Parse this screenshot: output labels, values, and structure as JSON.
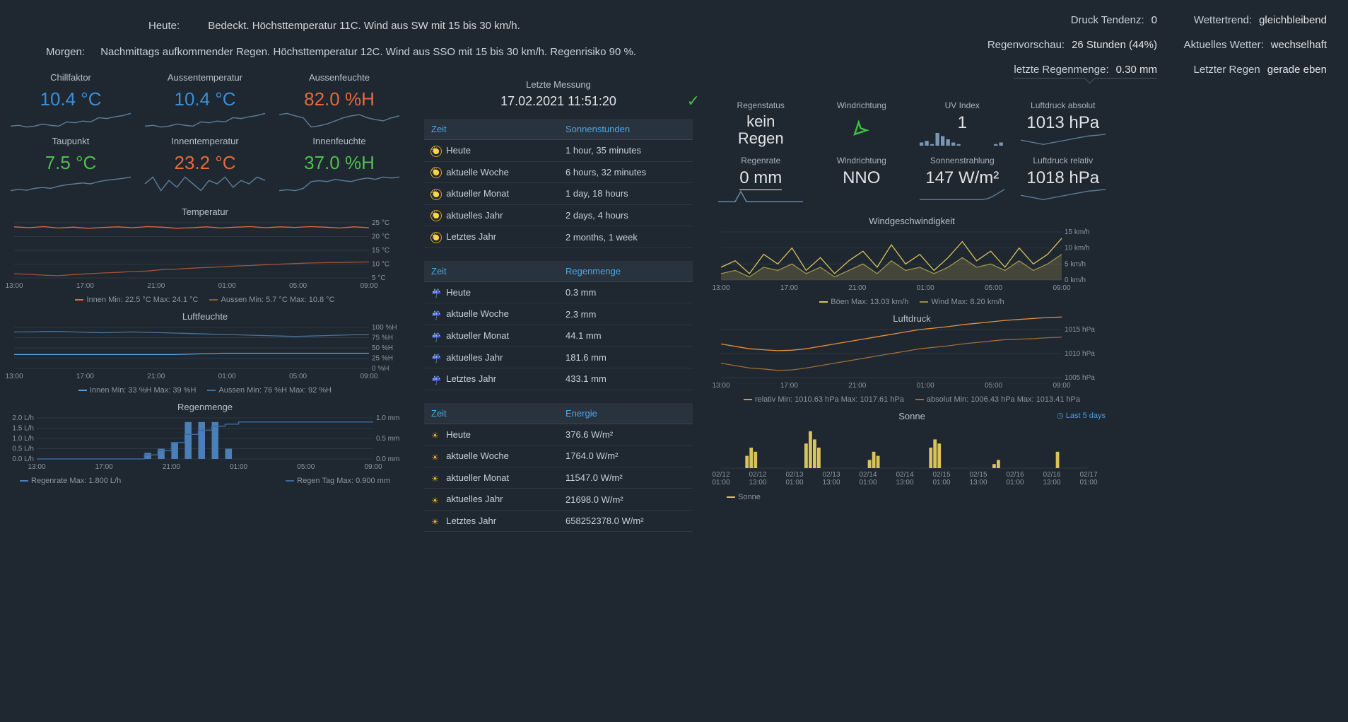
{
  "forecast_today": {
    "label": "Heute:",
    "text": "Bedeckt. Höchsttemperatur 11C. Wind aus SW mit 15 bis 30 km/h."
  },
  "forecast_tomorrow": {
    "label": "Morgen:",
    "text": "Nachmittags aufkommender Regen. Höchsttemperatur 12C. Wind aus SSO mit 15 bis 30 km/h. Regenrisiko 90 %."
  },
  "top_right": {
    "pressure_trend": {
      "label": "Druck Tendenz:",
      "value": "0"
    },
    "weather_trend": {
      "label": "Wettertrend:",
      "value": "gleichbleibend"
    },
    "rain_forecast": {
      "label": "Regenvorschau:",
      "value": "26 Stunden (44%)"
    },
    "current_weather": {
      "label": "Aktuelles Wetter:",
      "value": "wechselhaft"
    },
    "last_rain_amount": {
      "label": "letzte Regenmenge:",
      "value": "0.30 mm"
    },
    "last_rain": {
      "label": "Letzter Regen",
      "value": "gerade eben"
    }
  },
  "timestamp": {
    "label": "Letzte Messung",
    "value": "17.02.2021 11:51:20"
  },
  "left_metrics": [
    {
      "title": "Chillfaktor",
      "value": "10.4 °C",
      "color": "#3a8fd9",
      "spark_color": "#5a7a94",
      "spark": [
        0.4,
        0.42,
        0.38,
        0.4,
        0.45,
        0.42,
        0.4,
        0.5,
        0.48,
        0.52,
        0.5,
        0.6,
        0.58,
        0.62,
        0.65,
        0.7
      ]
    },
    {
      "title": "Aussentemperatur",
      "value": "10.4 °C",
      "color": "#3a8fd9",
      "spark_color": "#5a7a94",
      "spark": [
        0.4,
        0.42,
        0.38,
        0.4,
        0.45,
        0.42,
        0.4,
        0.5,
        0.48,
        0.52,
        0.5,
        0.6,
        0.58,
        0.62,
        0.65,
        0.7
      ]
    },
    {
      "title": "Aussenfeuchte",
      "value": "82.0 %H",
      "color": "#e66a3c",
      "spark_color": "#5a7a94",
      "spark": [
        0.6,
        0.62,
        0.58,
        0.55,
        0.4,
        0.42,
        0.45,
        0.5,
        0.55,
        0.58,
        0.6,
        0.55,
        0.52,
        0.5,
        0.55,
        0.58
      ]
    },
    {
      "title": "Taupunkt",
      "value": "7.5 °C",
      "color": "#4fbf4f",
      "spark_color": "#5a7a94",
      "spark": [
        0.35,
        0.38,
        0.36,
        0.4,
        0.42,
        0.4,
        0.45,
        0.48,
        0.5,
        0.52,
        0.5,
        0.55,
        0.58,
        0.6,
        0.62,
        0.65
      ]
    },
    {
      "title": "Innentemperatur",
      "value": "23.2 °C",
      "color": "#e66a3c",
      "spark_color": "#5a7a94",
      "spark": [
        0.5,
        0.6,
        0.4,
        0.55,
        0.45,
        0.6,
        0.5,
        0.4,
        0.55,
        0.5,
        0.6,
        0.45,
        0.55,
        0.5,
        0.6,
        0.55
      ]
    },
    {
      "title": "Innenfeuchte",
      "value": "37.0 %H",
      "color": "#4fbf4f",
      "spark_color": "#5a7a94",
      "spark": [
        0.3,
        0.32,
        0.3,
        0.35,
        0.5,
        0.52,
        0.5,
        0.55,
        0.52,
        0.5,
        0.55,
        0.58,
        0.55,
        0.6,
        0.58,
        0.6
      ]
    }
  ],
  "right_metrics": [
    {
      "title": "Regenstatus",
      "value_html": "kein<br>Regen",
      "color": "#e0e4e8",
      "spark": null
    },
    {
      "title": "Windrichtung",
      "arrow": true,
      "arrow_rotation": 225,
      "color": "#3fbf3f"
    },
    {
      "title": "UV Index",
      "value": "1",
      "color": "#e0e4e8",
      "bar_spark": [
        0.1,
        0.15,
        0.05,
        0.4,
        0.3,
        0.2,
        0.1,
        0.05,
        0.0,
        0.0,
        0.0,
        0.0,
        0.0,
        0.0,
        0.05,
        0.1
      ]
    },
    {
      "title": "Luftdruck absolut",
      "value": "1013 hPa",
      "color": "#e0e4e8",
      "spark_color": "#5a7a94",
      "spark": [
        0.5,
        0.45,
        0.4,
        0.35,
        0.3,
        0.35,
        0.4,
        0.45,
        0.5,
        0.55,
        0.6,
        0.65,
        0.7,
        0.72,
        0.75,
        0.78
      ]
    },
    {
      "title": "Regenrate",
      "value": "0 mm",
      "underline": true,
      "color": "#e0e4e8",
      "spark_color": "#6a8aa8",
      "spark": [
        0,
        0,
        0,
        0,
        0.3,
        0,
        0,
        0,
        0,
        0,
        0,
        0,
        0,
        0,
        0,
        0
      ]
    },
    {
      "title": "Windrichtung",
      "value": "NNO",
      "color": "#e0e4e8",
      "spark": null
    },
    {
      "title": "Sonnenstrahlung",
      "value": "147 W/m²",
      "color": "#e0e4e8",
      "spark_color": "#5a7a94",
      "spark": [
        0.1,
        0.1,
        0.1,
        0.1,
        0.1,
        0.1,
        0.1,
        0.1,
        0.1,
        0.1,
        0.1,
        0.1,
        0.15,
        0.3,
        0.5,
        0.7
      ]
    },
    {
      "title": "Luftdruck relativ",
      "value": "1018 hPa",
      "color": "#e0e4e8",
      "spark_color": "#5a7a94",
      "spark": [
        0.5,
        0.45,
        0.4,
        0.35,
        0.3,
        0.35,
        0.4,
        0.45,
        0.5,
        0.55,
        0.6,
        0.65,
        0.7,
        0.72,
        0.75,
        0.78
      ]
    }
  ],
  "tables": {
    "sun": {
      "headers": [
        "Zeit",
        "Sonnenstunden"
      ],
      "icon": "sun",
      "rows": [
        [
          "Heute",
          "1 hour, 35 minutes"
        ],
        [
          "aktuelle Woche",
          "6 hours, 32 minutes"
        ],
        [
          "aktueller Monat",
          "1 day, 18 hours"
        ],
        [
          "aktuelles Jahr",
          "2 days, 4 hours"
        ],
        [
          "Letztes Jahr",
          "2 months, 1 week"
        ]
      ]
    },
    "rain": {
      "headers": [
        "Zeit",
        "Regenmenge"
      ],
      "icon": "rain",
      "rows": [
        [
          "Heute",
          "0.3 mm"
        ],
        [
          "aktuelle Woche",
          "2.3 mm"
        ],
        [
          "aktueller Monat",
          "44.1 mm"
        ],
        [
          "aktuelles Jahr",
          "181.6 mm"
        ],
        [
          "Letztes Jahr",
          "433.1 mm"
        ]
      ]
    },
    "energy": {
      "headers": [
        "Zeit",
        "Energie"
      ],
      "icon": "energy",
      "rows": [
        [
          "Heute",
          "376.6 W/m²"
        ],
        [
          "aktuelle Woche",
          "1764.0 W/m²"
        ],
        [
          "aktueller Monat",
          "11547.0 W/m²"
        ],
        [
          "aktuelles Jahr",
          "21698.0 W/m²"
        ],
        [
          "Letztes Jahr",
          "658252378.0 W/m²"
        ]
      ]
    }
  },
  "charts": {
    "time_axis_labels": [
      "13:00",
      "17:00",
      "21:00",
      "01:00",
      "05:00",
      "09:00"
    ],
    "temperature": {
      "title": "Temperatur",
      "height": 100,
      "y_ticks": [
        5,
        10,
        15,
        20,
        25
      ],
      "y_unit": "°C",
      "series": [
        {
          "name": "Innen",
          "color": "#e66a3c",
          "min": "22.5 °C",
          "max": "24.1 °C",
          "data": [
            23.5,
            23.2,
            23.6,
            23.1,
            23.4,
            23.0,
            23.3,
            23.5,
            23.2,
            23.6,
            23.4,
            23.0,
            23.2,
            23.5,
            23.1,
            23.4,
            23.6,
            23.2,
            23.5,
            23.3,
            23.6,
            23.4,
            23.1,
            23.5,
            23.2
          ]
        },
        {
          "name": "Aussen",
          "color": "#e66a3c",
          "dim": true,
          "min": "5.7 °C",
          "max": "10.8 °C",
          "data": [
            6.5,
            6.3,
            6.0,
            5.8,
            6.2,
            6.5,
            6.8,
            7.0,
            7.3,
            7.5,
            8.0,
            8.2,
            8.5,
            8.8,
            9.0,
            9.3,
            9.5,
            9.8,
            10.0,
            10.2,
            10.4,
            10.5,
            10.6,
            10.7,
            10.8
          ]
        }
      ]
    },
    "humidity": {
      "title": "Luftfeuchte",
      "height": 80,
      "y_ticks": [
        0,
        25,
        50,
        75,
        100
      ],
      "y_unit": "%H",
      "series": [
        {
          "name": "Innen",
          "color": "#5a9ed8",
          "min": "33 %H",
          "max": "39 %H",
          "data": [
            34,
            34,
            34,
            34,
            34,
            34,
            34,
            34,
            34,
            34,
            34,
            34,
            35,
            36,
            37,
            37,
            37,
            37,
            37,
            37,
            37,
            37,
            37,
            37,
            37
          ]
        },
        {
          "name": "Aussen",
          "color": "#5a9ed8",
          "dim": true,
          "min": "76 %H",
          "max": "92 %H",
          "data": [
            89,
            89,
            90,
            90,
            89,
            88,
            87,
            88,
            89,
            88,
            87,
            86,
            85,
            84,
            83,
            82,
            81,
            80,
            79,
            78,
            79,
            80,
            81,
            82,
            82
          ]
        }
      ]
    },
    "rain": {
      "title": "Regenmenge",
      "height": 80,
      "y_ticks_left": [
        0,
        0.5,
        1.0,
        1.5,
        2.0
      ],
      "y_unit_left": "L/h",
      "y_ticks_right": [
        0,
        0.5,
        1.0
      ],
      "y_unit_right": "mm",
      "bars": {
        "color_rate": "#4a7fb8",
        "color_day": "#3a6a9e",
        "rate_data": [
          0,
          0,
          0,
          0,
          0,
          0,
          0,
          0,
          0.3,
          0.5,
          0.8,
          1.8,
          1.8,
          1.8,
          0.5,
          0,
          0,
          0,
          0,
          0,
          0,
          0,
          0,
          0,
          0
        ],
        "day_data": [
          0,
          0,
          0,
          0,
          0,
          0,
          0,
          0,
          0.1,
          0.2,
          0.4,
          0.6,
          0.7,
          0.8,
          0.85,
          0.9,
          0.9,
          0.9,
          0.9,
          0.9,
          0.9,
          0.9,
          0.9,
          0.9,
          0.9
        ]
      },
      "legend": [
        {
          "name": "Regenrate",
          "color": "#4a7fb8",
          "sfx": "Max: 1.800 L/h"
        },
        {
          "name": "Regen Tag",
          "color": "#3a6a9e",
          "sfx": "Max: 0.900 mm"
        }
      ]
    },
    "windspeed": {
      "title": "Windgeschwindigkeit",
      "height": 90,
      "y_ticks": [
        0,
        5,
        10,
        15
      ],
      "y_unit": "km/h",
      "series": [
        {
          "name": "Böen",
          "color": "#d8c45a",
          "max": "13.03 km/h",
          "data": [
            4,
            6,
            2,
            8,
            5,
            10,
            3,
            7,
            2,
            6,
            9,
            4,
            11,
            5,
            8,
            3,
            7,
            12,
            6,
            9,
            4,
            10,
            5,
            8,
            13
          ]
        },
        {
          "name": "Wind",
          "color": "#d8c45a",
          "dim": true,
          "fill": true,
          "max": "8.20 km/h",
          "data": [
            2,
            3,
            1,
            4,
            3,
            5,
            2,
            4,
            1,
            3,
            5,
            2,
            6,
            3,
            4,
            2,
            4,
            7,
            4,
            5,
            3,
            6,
            3,
            5,
            8
          ]
        }
      ]
    },
    "pressure": {
      "title": "Luftdruck",
      "height": 90,
      "y_ticks": [
        1005,
        1010,
        1015
      ],
      "y_unit": "hPa",
      "series": [
        {
          "name": "relativ",
          "color": "#e6903c",
          "min": "1010.63 hPa",
          "max": "1017.61 hPa",
          "data": [
            1012,
            1011.5,
            1011,
            1010.8,
            1010.6,
            1010.7,
            1011,
            1011.5,
            1012,
            1012.5,
            1013,
            1013.5,
            1014,
            1014.5,
            1015,
            1015.3,
            1015.6,
            1016,
            1016.3,
            1016.6,
            1016.9,
            1017.1,
            1017.3,
            1017.5,
            1017.6
          ]
        },
        {
          "name": "absolut",
          "color": "#e6903c",
          "dim": true,
          "min": "1006.43 hPa",
          "max": "1013.41 hPa",
          "data": [
            1008,
            1007.5,
            1007,
            1006.8,
            1006.5,
            1006.6,
            1007,
            1007.5,
            1008,
            1008.5,
            1009,
            1009.5,
            1010,
            1010.5,
            1011,
            1011.3,
            1011.6,
            1012,
            1012.3,
            1012.6,
            1012.9,
            1013.0,
            1013.1,
            1013.3,
            1013.4
          ]
        }
      ]
    },
    "sonne": {
      "title": "Sonne",
      "height": 90,
      "x_labels": [
        "02/12 01:00",
        "02/12 13:00",
        "02/13 01:00",
        "02/13 13:00",
        "02/14 01:00",
        "02/14 13:00",
        "02/15 01:00",
        "02/15 13:00",
        "02/16 01:00",
        "02/16 13:00",
        "02/17 01:00"
      ],
      "bars": {
        "color": "#d8c45a",
        "groups": [
          [
            0.3,
            0.5,
            0.4
          ],
          [
            0.6,
            0.9,
            0.7,
            0.5
          ],
          [
            0.2,
            0.4,
            0.3
          ],
          [
            0.5,
            0.7,
            0.6
          ],
          [
            0.1,
            0.2
          ],
          [
            0.4
          ]
        ]
      },
      "legend": [
        {
          "name": "Sonne",
          "color": "#d8c45a"
        }
      ],
      "extra_link": "Last 5 days"
    }
  }
}
